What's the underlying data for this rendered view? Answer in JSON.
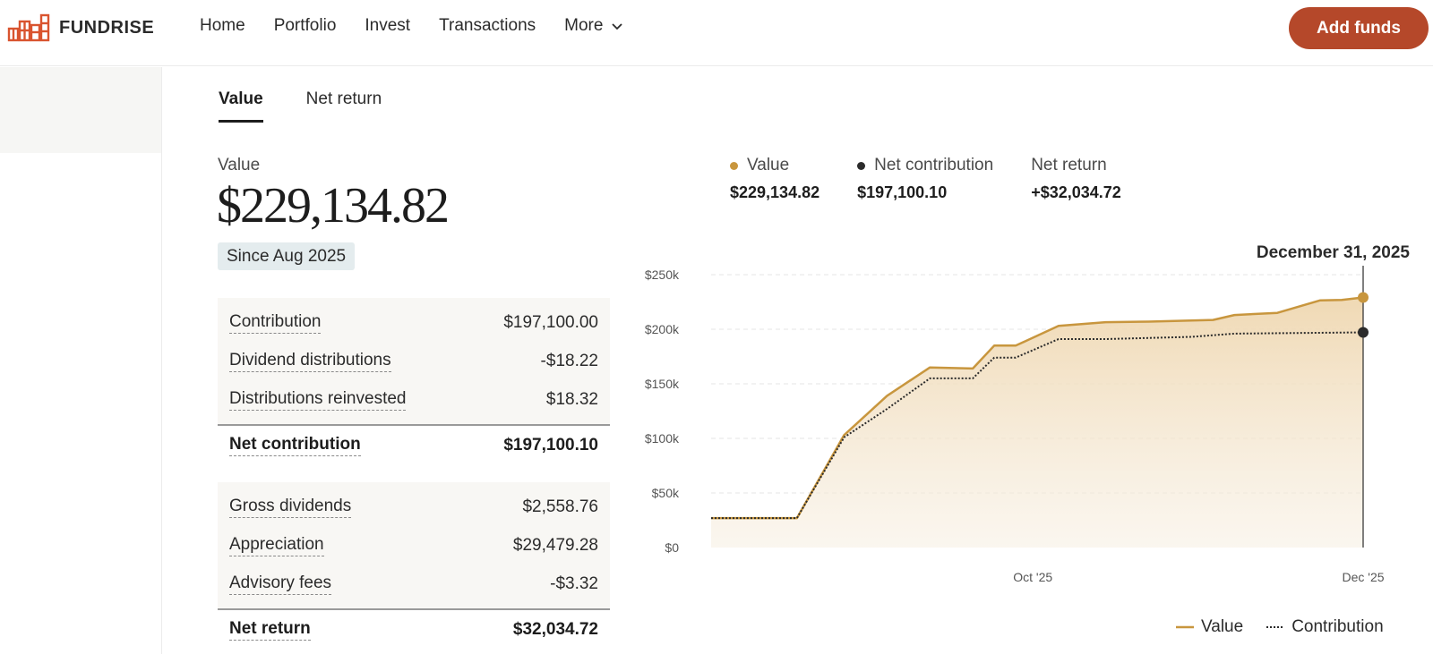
{
  "brand": {
    "name": "FUNDRISE",
    "accent": "#b5482a"
  },
  "nav": {
    "links": [
      "Home",
      "Portfolio",
      "Invest",
      "Transactions",
      "More"
    ],
    "add_funds": "Add funds"
  },
  "tabs": [
    "Value",
    "Net return"
  ],
  "summary": {
    "value_label": "Value",
    "value": "$229,134.82",
    "since": "Since Aug 2025"
  },
  "breakdown": {
    "contribution_rows": [
      {
        "label": "Contribution",
        "value": "$197,100.00"
      },
      {
        "label": "Dividend distributions",
        "value": "-$18.22"
      },
      {
        "label": "Distributions reinvested",
        "value": "$18.32"
      }
    ],
    "net_contribution": {
      "label": "Net contribution",
      "value": "$197,100.10"
    },
    "return_rows": [
      {
        "label": "Gross dividends",
        "value": "$2,558.76"
      },
      {
        "label": "Appreciation",
        "value": "$29,479.28"
      },
      {
        "label": "Advisory fees",
        "value": "-$3.32"
      }
    ],
    "net_return": {
      "label": "Net return",
      "value": "$32,034.72"
    }
  },
  "chart_header": {
    "items": [
      {
        "name": "Value",
        "value": "$229,134.82",
        "color": "#c8963e"
      },
      {
        "name": "Net contribution",
        "value": "$197,100.10",
        "color": "#2b2b2b"
      },
      {
        "name": "Net return",
        "value": "+$32,034.72"
      }
    ],
    "selected_date": "December 31, 2025"
  },
  "chart_data": {
    "type": "area",
    "x_start": "2025-08-01",
    "x_end": "2025-12-31",
    "x_ticks": [
      "Oct '25",
      "Dec '25"
    ],
    "x_tick_dates": [
      "2025-10-15",
      "2025-12-31"
    ],
    "y_ticks": [
      "$0",
      "$50k",
      "$100k",
      "$150k",
      "$200k",
      "$250k"
    ],
    "ylim": [
      0,
      250000
    ],
    "grid": true,
    "legend_position": "bottom-right",
    "series": [
      {
        "name": "Value",
        "color": "#c8963e",
        "style": "solid",
        "points": [
          [
            "2025-08-01",
            27000
          ],
          [
            "2025-08-21",
            27000
          ],
          [
            "2025-09-01",
            103000
          ],
          [
            "2025-09-11",
            139000
          ],
          [
            "2025-09-21",
            165000
          ],
          [
            "2025-10-01",
            164000
          ],
          [
            "2025-10-06",
            185000
          ],
          [
            "2025-10-11",
            185000
          ],
          [
            "2025-10-21",
            203000
          ],
          [
            "2025-11-01",
            206500
          ],
          [
            "2025-11-11",
            207000
          ],
          [
            "2025-11-21",
            208000
          ],
          [
            "2025-11-26",
            208500
          ],
          [
            "2025-12-01",
            213000
          ],
          [
            "2025-12-11",
            215000
          ],
          [
            "2025-12-21",
            226500
          ],
          [
            "2025-12-26",
            226800
          ],
          [
            "2025-12-31",
            229134.82
          ]
        ]
      },
      {
        "name": "Contribution",
        "color": "#2b2b2b",
        "style": "dotted",
        "points": [
          [
            "2025-08-01",
            27000
          ],
          [
            "2025-08-21",
            27000
          ],
          [
            "2025-09-01",
            101000
          ],
          [
            "2025-09-11",
            127000
          ],
          [
            "2025-09-21",
            155000
          ],
          [
            "2025-10-01",
            155000
          ],
          [
            "2025-10-06",
            174000
          ],
          [
            "2025-10-11",
            174000
          ],
          [
            "2025-10-21",
            191000
          ],
          [
            "2025-11-01",
            191000
          ],
          [
            "2025-11-21",
            193000
          ],
          [
            "2025-12-01",
            196000
          ],
          [
            "2025-12-31",
            197100.1
          ]
        ]
      }
    ],
    "legend": [
      {
        "name": "Value",
        "style": "solid",
        "color": "#c8963e"
      },
      {
        "name": "Contribution",
        "style": "dotted",
        "color": "#2b2b2b"
      }
    ]
  }
}
